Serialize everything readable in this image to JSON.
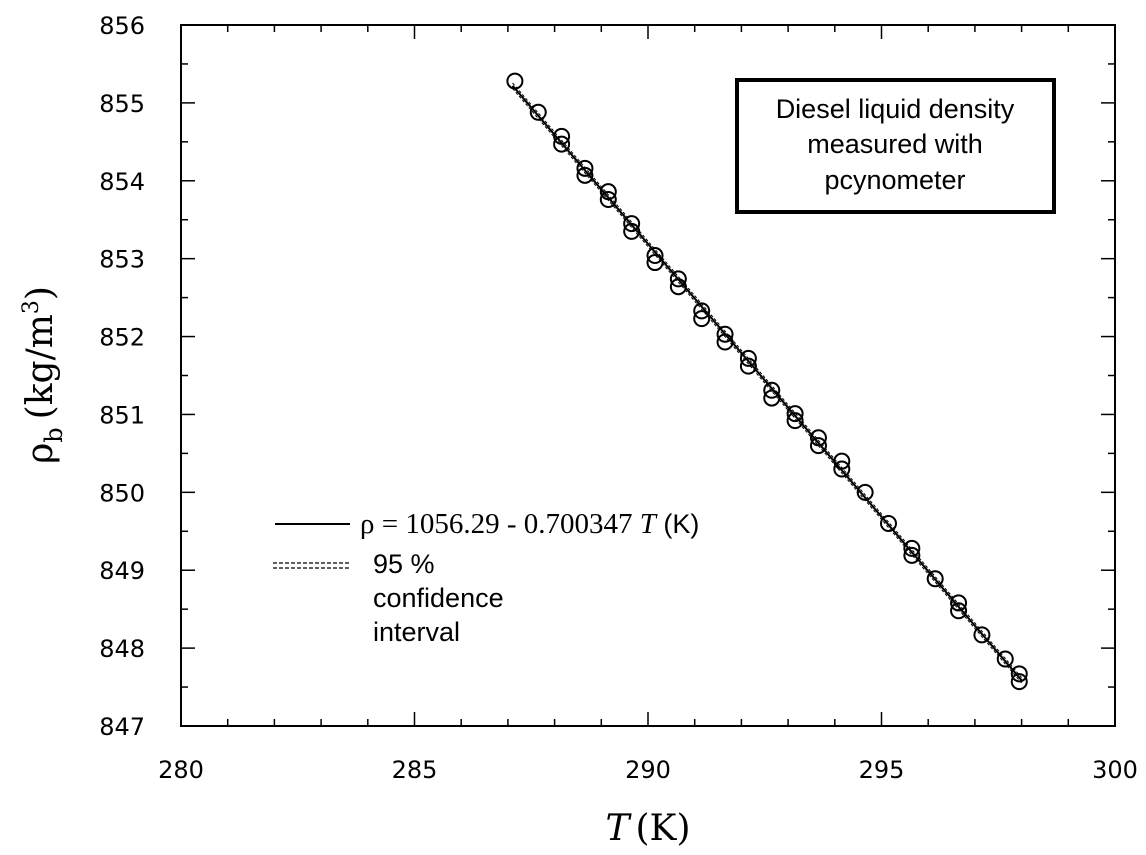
{
  "chart_data": {
    "type": "scatter",
    "title": "",
    "xlabel": {
      "var": "T",
      "unit": "(K)"
    },
    "ylabel": {
      "var": "ρ",
      "sub": "b",
      "unit": "(kg/m",
      "sup": "3",
      "close": ")"
    },
    "xlim": [
      280,
      300
    ],
    "ylim": [
      847,
      856
    ],
    "x_ticks": [
      280,
      285,
      290,
      295,
      300
    ],
    "y_ticks": [
      847,
      848,
      849,
      850,
      851,
      852,
      853,
      854,
      855,
      856
    ],
    "x_tick_labels": [
      "280",
      "285",
      "290",
      "295",
      "300"
    ],
    "y_tick_labels": [
      "847",
      "848",
      "849",
      "850",
      "851",
      "852",
      "853",
      "854",
      "855",
      "856"
    ],
    "grid": false,
    "annotation_box": [
      "Diesel liquid density",
      "measured with",
      "pcynometer"
    ],
    "legend": {
      "placement": "center-left",
      "fit_label": {
        "prefix": "ρ = 1056.29 - 0.700347 ",
        "var": "T",
        "suffix": " (K)"
      },
      "ci_label": [
        "95 %",
        "confidence",
        "interval"
      ]
    },
    "fit": {
      "intercept": 1056.29,
      "slope": -0.700347,
      "x_range": [
        287.1,
        298.0
      ]
    },
    "series": [
      {
        "type": "scatter",
        "marker": "open-circle",
        "x": [
          287.15,
          287.65,
          288.15,
          288.15,
          288.65,
          288.65,
          289.15,
          289.15,
          289.65,
          289.65,
          290.15,
          290.15,
          290.65,
          290.65,
          291.15,
          291.15,
          291.65,
          291.65,
          292.15,
          292.15,
          292.65,
          292.65,
          293.15,
          293.15,
          293.65,
          293.65,
          294.15,
          294.15,
          294.65,
          295.15,
          295.65,
          295.65,
          296.15,
          296.65,
          296.65,
          297.15,
          297.65,
          297.95,
          297.95
        ],
        "y": [
          855.28,
          854.88,
          854.57,
          854.47,
          854.16,
          854.07,
          853.86,
          853.76,
          853.45,
          853.35,
          853.04,
          852.95,
          852.74,
          852.64,
          852.33,
          852.23,
          852.03,
          851.93,
          851.72,
          851.62,
          851.31,
          851.21,
          851.01,
          850.92,
          850.7,
          850.6,
          850.4,
          850.3,
          850.0,
          849.6,
          849.28,
          849.19,
          848.89,
          848.58,
          848.48,
          848.17,
          847.86,
          847.67,
          847.57
        ]
      }
    ]
  }
}
